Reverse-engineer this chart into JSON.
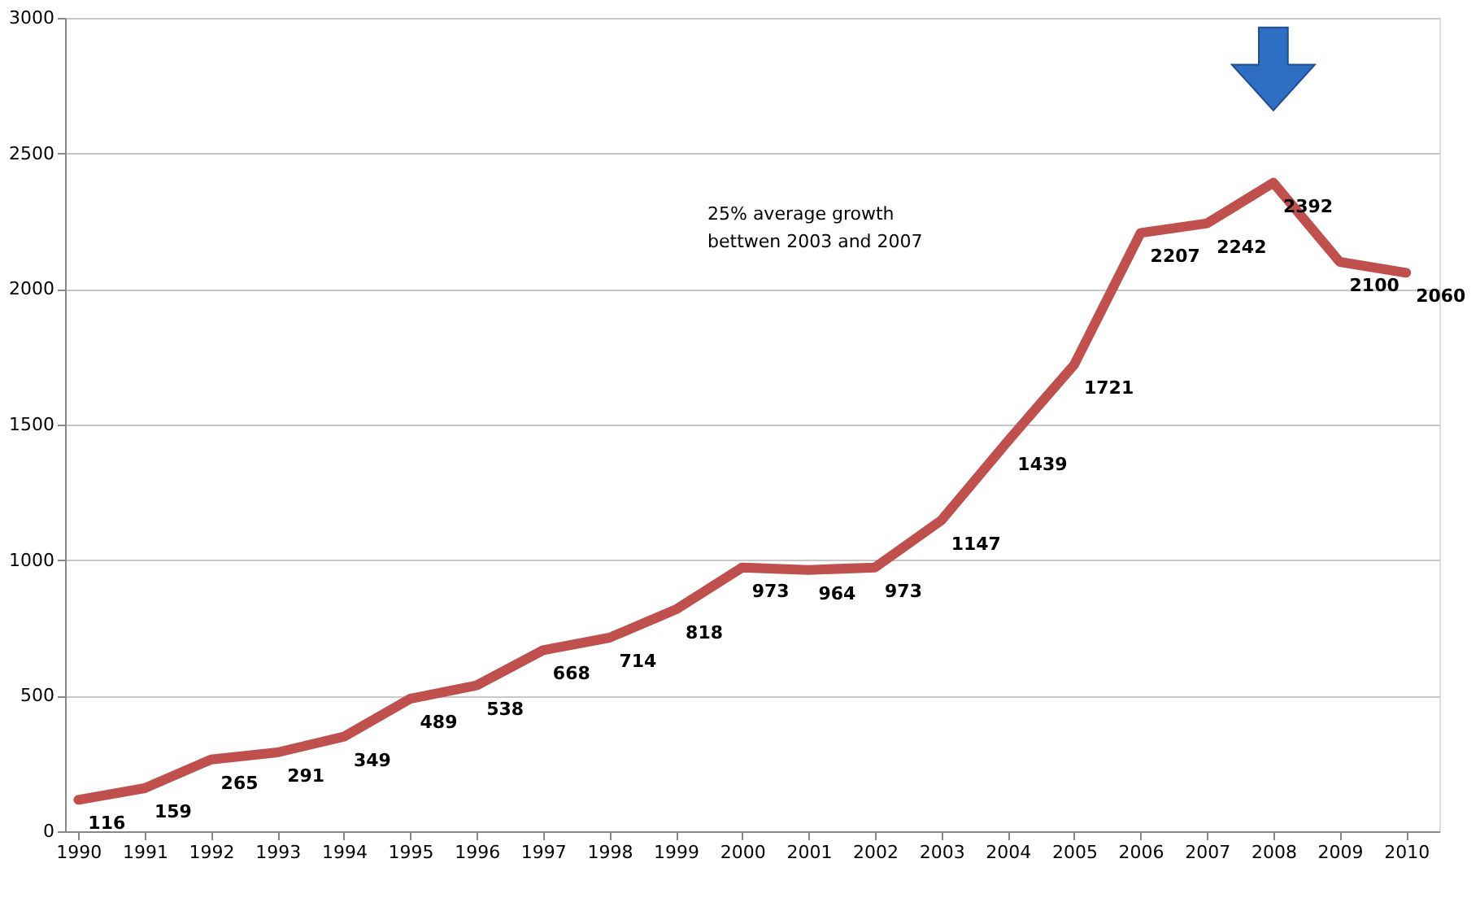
{
  "chart_data": {
    "type": "line",
    "categories": [
      "1990",
      "1991",
      "1992",
      "1993",
      "1994",
      "1995",
      "1996",
      "1997",
      "1998",
      "1999",
      "2000",
      "2001",
      "2002",
      "2003",
      "2004",
      "2005",
      "2006",
      "2007",
      "2008",
      "2009",
      "2010"
    ],
    "series": [
      {
        "color": "#c0504d",
        "values": [
          116,
          159,
          265,
          291,
          349,
          489,
          538,
          668,
          714,
          818,
          973,
          964,
          973,
          1147,
          1439,
          1721,
          2207,
          2242,
          2392,
          2100,
          2060
        ]
      }
    ],
    "ylim": [
      0,
      3000
    ],
    "yticks": [
      0,
      500,
      1000,
      1500,
      2000,
      2500,
      3000
    ],
    "grid": "y",
    "data_labels": true,
    "marker": "none",
    "line_style": "solid",
    "annotations": [
      "25% average growth\nbettwen 2003 and 2007"
    ]
  }
}
